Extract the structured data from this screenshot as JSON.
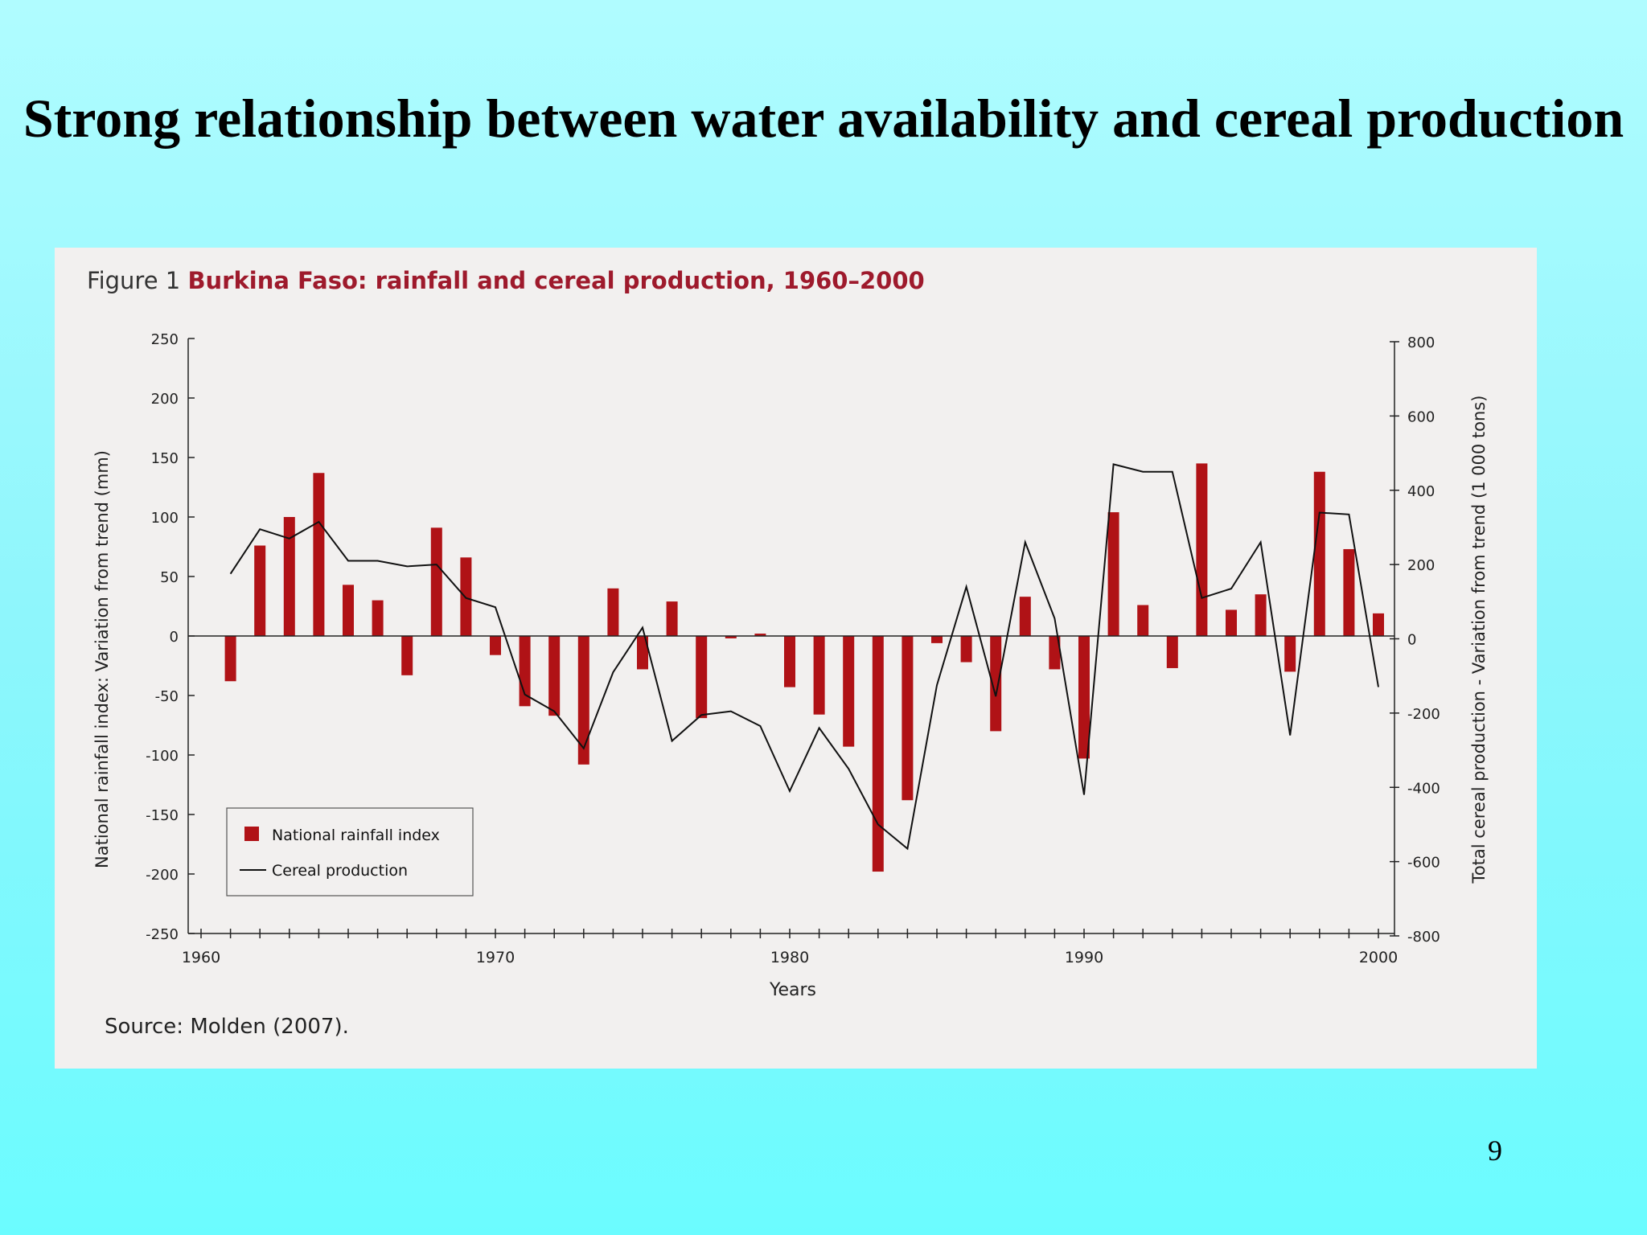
{
  "slide": {
    "title": "Strong relationship between water availability and cereal production",
    "page_number": "9"
  },
  "figure": {
    "label": "Figure 1",
    "title": "Burkina Faso: rainfall and cereal production, 1960–2000",
    "source": "Source: Molden (2007)."
  },
  "colors": {
    "background_top": "#b0fcff",
    "background_bottom": "#6bfcff",
    "panel": "#f2f0ef",
    "bar": "#b01216",
    "line": "#111111"
  },
  "chart_data": {
    "type": "bar",
    "title": "Burkina Faso: rainfall and cereal production, 1960–2000",
    "xlabel": "Years",
    "ylabel": "National rainfall index: Variation from trend (mm)",
    "ylabel_right": "Total cereal production - Variation from trend (1 000 tons)",
    "xlim": [
      1960,
      2000
    ],
    "ylim": [
      -250,
      250
    ],
    "ylim_right": [
      -800,
      800
    ],
    "x_ticks": [
      1960,
      1970,
      1980,
      1990,
      2000
    ],
    "y_ticks": [
      250,
      200,
      150,
      100,
      50,
      0,
      -50,
      -100,
      -150,
      -200,
      -250
    ],
    "y_ticks_right": [
      800,
      600,
      400,
      200,
      0,
      -200,
      -400,
      -600,
      -800
    ],
    "legend_position": "bottom-left",
    "legend": [
      "National rainfall index",
      "Cereal production"
    ],
    "series": [
      {
        "name": "National rainfall index",
        "type": "bar",
        "axis": "left",
        "x": [
          1961,
          1962,
          1963,
          1964,
          1965,
          1966,
          1967,
          1968,
          1969,
          1970,
          1971,
          1972,
          1973,
          1974,
          1975,
          1976,
          1977,
          1978,
          1979,
          1980,
          1981,
          1982,
          1983,
          1984,
          1985,
          1986,
          1987,
          1988,
          1989,
          1990,
          1991,
          1992,
          1993,
          1994,
          1995,
          1996,
          1997,
          1998,
          1999,
          2000
        ],
        "values": [
          -38,
          76,
          100,
          137,
          43,
          30,
          -33,
          91,
          66,
          -16,
          -59,
          -67,
          -108,
          40,
          -28,
          29,
          -69,
          -2,
          2,
          -43,
          -66,
          -93,
          -198,
          -138,
          -6,
          -22,
          -80,
          33,
          -28,
          -103,
          104,
          26,
          -27,
          145,
          22,
          35,
          -30,
          138,
          73,
          19
        ]
      },
      {
        "name": "Cereal production",
        "type": "line",
        "axis": "right",
        "x": [
          1961,
          1962,
          1963,
          1964,
          1965,
          1966,
          1967,
          1968,
          1969,
          1970,
          1971,
          1972,
          1973,
          1974,
          1975,
          1976,
          1977,
          1978,
          1979,
          1980,
          1981,
          1982,
          1983,
          1984,
          1985,
          1986,
          1987,
          1988,
          1989,
          1990,
          1991,
          1992,
          1993,
          1994,
          1995,
          1996,
          1997,
          1998,
          1999,
          2000
        ],
        "values": [
          175,
          295,
          270,
          315,
          210,
          210,
          195,
          200,
          110,
          85,
          -150,
          -195,
          -295,
          -90,
          30,
          -275,
          -205,
          -195,
          -235,
          -410,
          -240,
          -350,
          -500,
          -565,
          -125,
          140,
          -155,
          260,
          55,
          -420,
          470,
          450,
          450,
          110,
          135,
          260,
          -260,
          340,
          335,
          -130
        ]
      }
    ]
  }
}
